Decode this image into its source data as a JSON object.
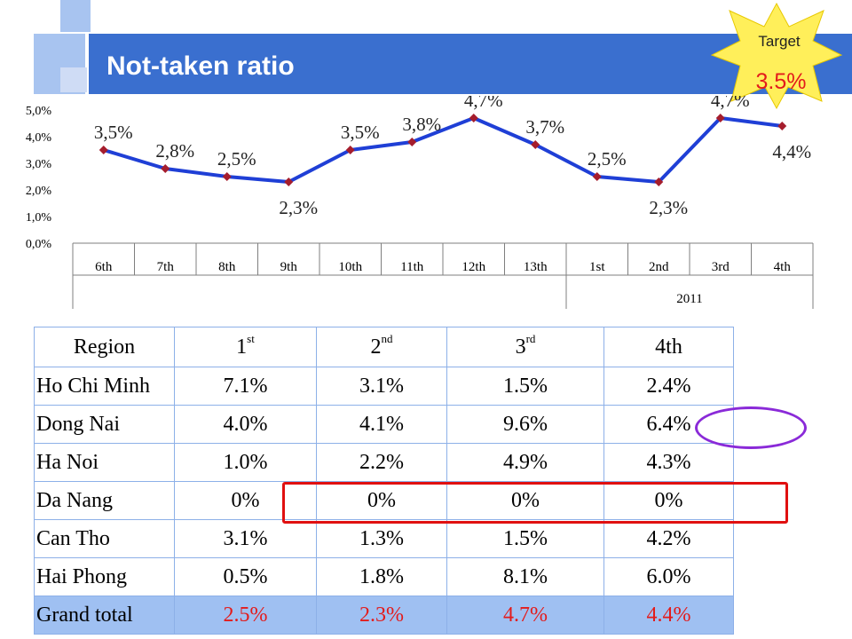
{
  "title": "Not-taken ratio",
  "target": {
    "label": "Target",
    "value": "3.5%"
  },
  "colors": {
    "header": "#3a6fcf",
    "line": "#1f3fd6",
    "marker": "#a51d2d",
    "badge": "#ffef5a",
    "total_row": "#9fc0f2",
    "total_text": "#e31b1b",
    "highlight_rect": "#e01010",
    "highlight_ellipse": "#8a2ad8"
  },
  "chart_data": {
    "type": "line",
    "categories": [
      "6th",
      "7th",
      "8th",
      "9th",
      "10th",
      "11th",
      "12th",
      "13th",
      "1st",
      "2nd",
      "3rd",
      "4th"
    ],
    "values": [
      3.5,
      2.8,
      2.5,
      2.3,
      3.5,
      3.8,
      4.7,
      3.7,
      2.5,
      2.3,
      4.7,
      4.4
    ],
    "data_labels": [
      "3,5%",
      "2,8%",
      "2,5%",
      "2,3%",
      "3,5%",
      "3,8%",
      "4,7%",
      "3,7%",
      "2,5%",
      "2,3%",
      "4,7%",
      "4,4%"
    ],
    "y_ticks": [
      "0,0%",
      "1,0%",
      "2,0%",
      "3,0%",
      "4,0%",
      "5,0%"
    ],
    "ylim": [
      0,
      5
    ],
    "group_label": "2011",
    "group_start_index": 8,
    "grid": false
  },
  "table": {
    "header": [
      "Region",
      "1",
      "2",
      "3",
      "4th"
    ],
    "header_sup": [
      "",
      "st",
      "nd",
      "rd",
      ""
    ],
    "rows": [
      {
        "region": "Ho Chi Minh",
        "values": [
          "7.1%",
          "3.1%",
          "1.5%",
          "2.4%"
        ]
      },
      {
        "region": "Dong Nai",
        "values": [
          "4.0%",
          "4.1%",
          "9.6%",
          "6.4%"
        ]
      },
      {
        "region": "Ha Noi",
        "values": [
          "1.0%",
          "2.2%",
          "4.9%",
          "4.3%"
        ]
      },
      {
        "region": "Da Nang",
        "values": [
          "0%",
          "0%",
          "0%",
          "0%"
        ]
      },
      {
        "region": " Can Tho",
        "values": [
          "3.1%",
          "1.3%",
          "1.5%",
          "4.2%"
        ]
      },
      {
        "region": "Hai Phong",
        "values": [
          "0.5%",
          "1.8%",
          "8.1%",
          "6.0%"
        ]
      },
      {
        "region": "Grand total",
        "values": [
          "2.5%",
          "2.3%",
          "4.7%",
          "4.4%"
        ]
      }
    ]
  }
}
